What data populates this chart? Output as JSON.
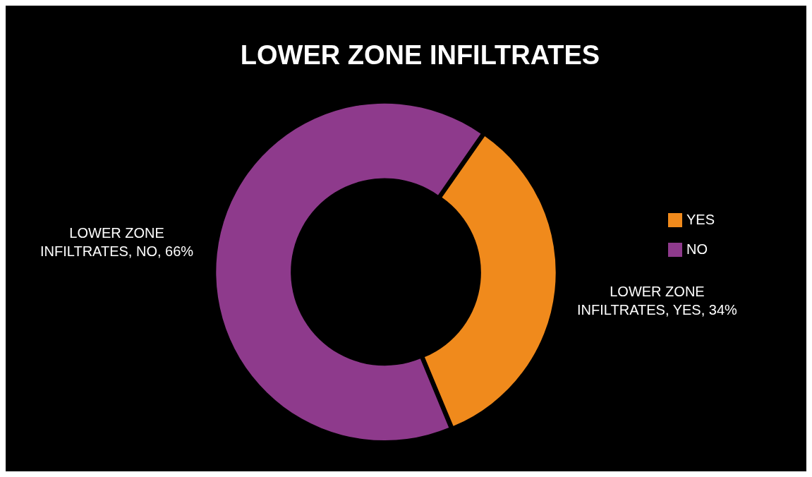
{
  "chart_data": {
    "type": "donut",
    "title": "LOWER ZONE INFILTRATES",
    "categories": [
      "YES",
      "NO"
    ],
    "values": [
      34,
      66
    ],
    "colors": [
      "#f08a1c",
      "#8e3a8c"
    ],
    "value_labels": [
      "LOWER ZONE INFILTRATES, YES, 34%",
      "LOWER ZONE INFILTRATES, NO, 66%"
    ],
    "legend": "right"
  }
}
